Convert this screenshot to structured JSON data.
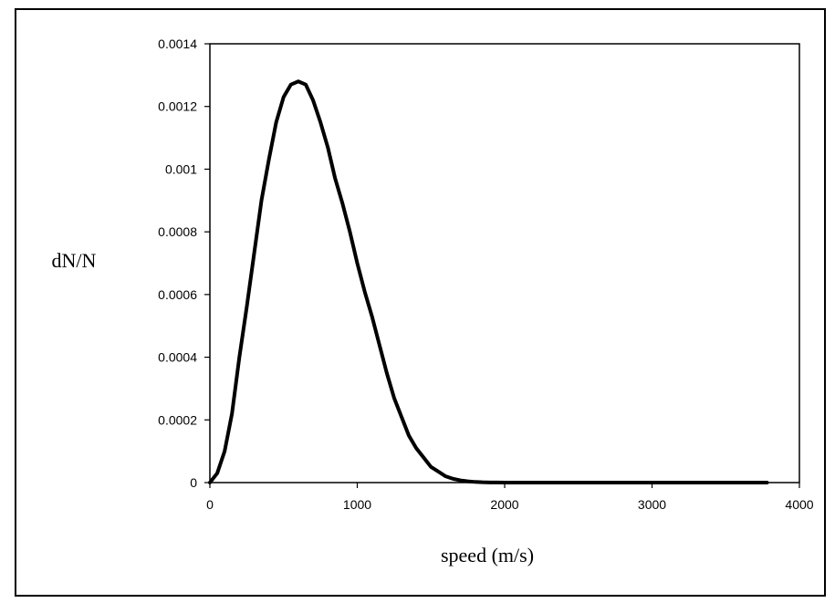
{
  "chart_data": {
    "type": "line",
    "title": "",
    "xlabel": "speed (m/s)",
    "ylabel": "dN/N",
    "xlim": [
      0,
      4000
    ],
    "ylim": [
      0,
      0.0014
    ],
    "x_ticks": [
      "0",
      "1000",
      "2000",
      "3000",
      "4000"
    ],
    "y_ticks": [
      "0",
      "0.0002",
      "0.0004",
      "0.0006",
      "0.0008",
      "0.001",
      "0.0012",
      "0.0014"
    ],
    "grid": false,
    "legend": "none",
    "line_color": "#000000",
    "series": [
      {
        "x": [
          0,
          50,
          100,
          150,
          200,
          250,
          300,
          350,
          400,
          450,
          500,
          550,
          600,
          650,
          700,
          750,
          800,
          850,
          900,
          950,
          1000,
          1050,
          1100,
          1150,
          1200,
          1250,
          1300,
          1350,
          1400,
          1450,
          1500,
          1550,
          1600,
          1650,
          1700,
          1750,
          1800,
          1850,
          1900,
          1950,
          2000,
          2500,
          3000,
          3500,
          3780
        ],
        "y": [
          0,
          3e-05,
          0.0001,
          0.00022,
          0.0004,
          0.00056,
          0.00073,
          0.0009,
          0.00103,
          0.00115,
          0.00123,
          0.00127,
          0.00128,
          0.00127,
          0.00122,
          0.00115,
          0.00107,
          0.00097,
          0.00089,
          0.0008,
          0.0007,
          0.00061,
          0.00053,
          0.00044,
          0.00035,
          0.00027,
          0.00021,
          0.00015,
          0.00011,
          8e-05,
          5e-05,
          3.5e-05,
          2e-05,
          1.2e-05,
          7e-06,
          4e-06,
          2e-06,
          1e-06,
          5e-07,
          2e-07,
          0,
          0,
          0,
          0,
          0
        ]
      }
    ]
  }
}
